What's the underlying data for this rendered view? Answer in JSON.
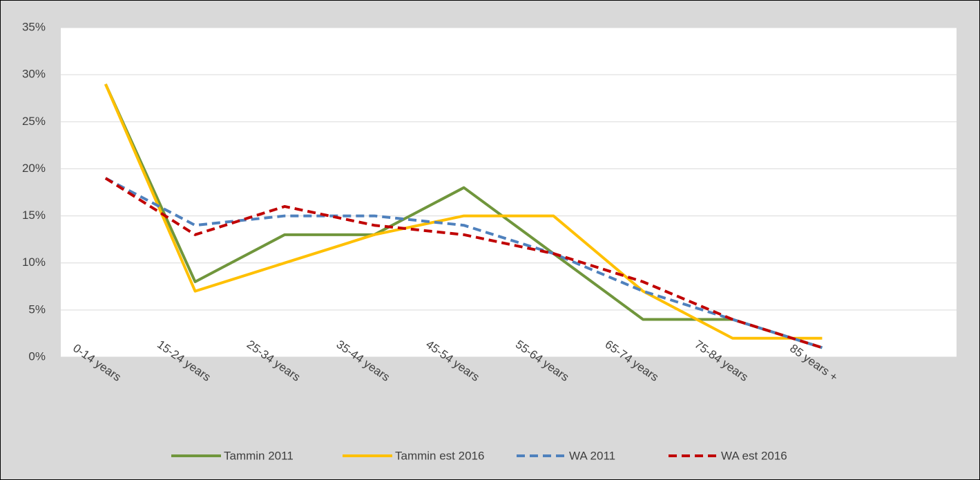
{
  "chart_data": {
    "type": "line",
    "categories": [
      "0-14 years",
      "15-24 years",
      "25-34 years",
      "35-44 years",
      "45-54 years",
      "55-64 years",
      "65-74 years",
      "75-84 years",
      "85 years +",
      null
    ],
    "series": [
      {
        "name": "Tammin 2011",
        "color": "#70963c",
        "dash": false,
        "values": [
          29,
          8,
          13,
          13,
          18,
          11,
          4,
          4,
          1,
          null
        ]
      },
      {
        "name": "Tammin est 2016",
        "color": "#ffc000",
        "dash": false,
        "values": [
          29,
          7,
          10,
          13,
          15,
          15,
          7,
          2,
          2,
          null
        ]
      },
      {
        "name": "WA 2011",
        "color": "#4f81bd",
        "dash": true,
        "values": [
          19,
          14,
          15,
          15,
          14,
          11,
          7,
          4,
          1,
          null
        ]
      },
      {
        "name": "WA est 2016",
        "color": "#c00000",
        "dash": true,
        "values": [
          19,
          13,
          16,
          14,
          13,
          11,
          8,
          4,
          1,
          null
        ]
      }
    ],
    "ylim": [
      0,
      35
    ],
    "yticks": [
      {
        "value": 0,
        "label": "0%"
      },
      {
        "value": 5,
        "label": "5%"
      },
      {
        "value": 10,
        "label": "10%"
      },
      {
        "value": 15,
        "label": "15%"
      },
      {
        "value": 20,
        "label": "20%"
      },
      {
        "value": 25,
        "label": "25%"
      },
      {
        "value": 30,
        "label": "30%"
      },
      {
        "value": 35,
        "label": "35%"
      }
    ],
    "grid": true,
    "legend": "bottom"
  }
}
